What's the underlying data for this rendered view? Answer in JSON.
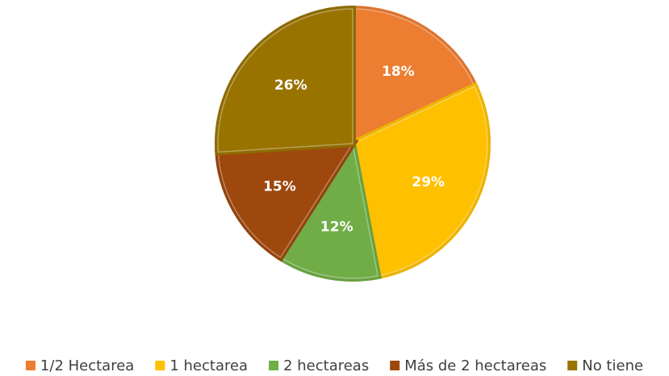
{
  "chart_data": {
    "type": "pie",
    "categories": [
      "1/2 Hectarea",
      "1 hectarea",
      "2 hectareas",
      "Más de 2 hectareas",
      "No tiene"
    ],
    "values": [
      18,
      29,
      12,
      15,
      26
    ],
    "value_labels": [
      "18%",
      "29%",
      "12%",
      "15%",
      "26%"
    ],
    "colors": [
      "#ED7D31",
      "#FFC000",
      "#70AD47",
      "#9E480E",
      "#997300"
    ],
    "legend": "bottom"
  }
}
